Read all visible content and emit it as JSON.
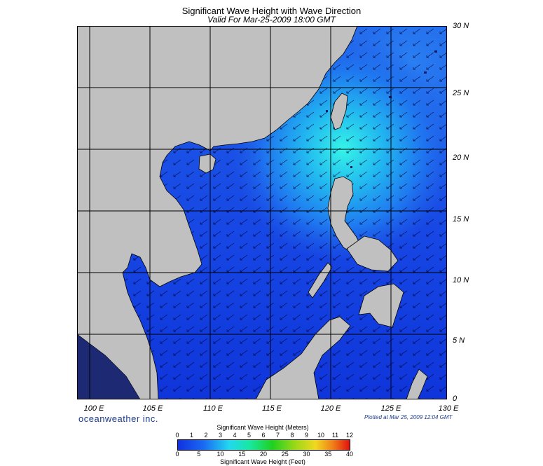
{
  "title": "Significant Wave Height with Wave Direction",
  "subtitle": "Valid For Mar-25-2009 18:00 GMT",
  "lat_labels": [
    "30 N",
    "25 N",
    "20 N",
    "15 N",
    "10 N",
    "5 N",
    "0"
  ],
  "lon_labels": [
    "100 E",
    "105 E",
    "110 E",
    "115 E",
    "120 E",
    "125 E",
    "130 E"
  ],
  "brand": "oceanweather inc.",
  "plotted": "Plotted at Mar 25, 2009 12:04 GMT",
  "legend": {
    "meters_title": "Significant Wave Height (Meters)",
    "feet_title": "Significant Wave Height (Feet)",
    "meters_ticks": [
      "0",
      "1",
      "2",
      "3",
      "4",
      "5",
      "6",
      "7",
      "8",
      "9",
      "10",
      "11",
      "12"
    ],
    "feet_ticks": [
      "0",
      "5",
      "10",
      "15",
      "20",
      "25",
      "30",
      "35",
      "40"
    ]
  },
  "colors": {
    "land": "#c0c0c0",
    "sea_low": "#0a2ad8",
    "sea_mid": "#1f6cf0",
    "sea_high": "#2ef0ea",
    "arrow": "#000033",
    "grid": "#000000"
  },
  "map_extent": {
    "lon": [
      99,
      130
    ],
    "lat": [
      0,
      30
    ]
  },
  "wave_direction": "northeast-to-southwest"
}
